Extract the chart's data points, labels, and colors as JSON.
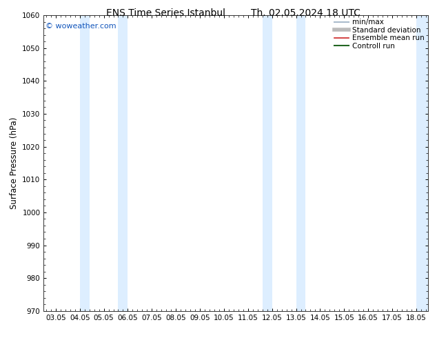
{
  "title_left": "ENS Time Series Istanbul",
  "title_right": "Th. 02.05.2024 18 UTC",
  "ylabel": "Surface Pressure (hPa)",
  "ylim": [
    970,
    1060
  ],
  "yticks": [
    970,
    980,
    990,
    1000,
    1010,
    1020,
    1030,
    1040,
    1050,
    1060
  ],
  "x_labels": [
    "03.05",
    "04.05",
    "05.05",
    "06.05",
    "07.05",
    "08.05",
    "09.05",
    "10.05",
    "11.05",
    "12.05",
    "13.05",
    "14.05",
    "15.05",
    "16.05",
    "17.05",
    "18.05"
  ],
  "x_positions": [
    0,
    1,
    2,
    3,
    4,
    5,
    6,
    7,
    8,
    9,
    10,
    11,
    12,
    13,
    14,
    15
  ],
  "xlim": [
    -0.5,
    15.5
  ],
  "shaded_bands": [
    {
      "x_start": 1.0,
      "x_end": 1.4
    },
    {
      "x_start": 2.6,
      "x_end": 3.0
    },
    {
      "x_start": 8.6,
      "x_end": 9.0
    },
    {
      "x_start": 10.0,
      "x_end": 10.4
    }
  ],
  "right_shaded": {
    "x_start": 15.0,
    "x_end": 15.5
  },
  "background_color": "#ffffff",
  "plot_bg_color": "#ffffff",
  "shade_color": "#ddeeff",
  "watermark_text": "© woweather.com",
  "watermark_color": "#1155bb",
  "legend_items": [
    {
      "label": "min/max",
      "color": "#aabbcc",
      "lw": 1.5,
      "linestyle": "-"
    },
    {
      "label": "Standard deviation",
      "color": "#bbbbbb",
      "lw": 4,
      "linestyle": "-"
    },
    {
      "label": "Ensemble mean run",
      "color": "#cc2222",
      "lw": 1.2,
      "linestyle": "-"
    },
    {
      "label": "Controll run",
      "color": "#226622",
      "lw": 1.5,
      "linestyle": "-"
    }
  ],
  "title_fontsize": 10,
  "tick_fontsize": 7.5,
  "ylabel_fontsize": 8.5,
  "legend_fontsize": 7.5
}
